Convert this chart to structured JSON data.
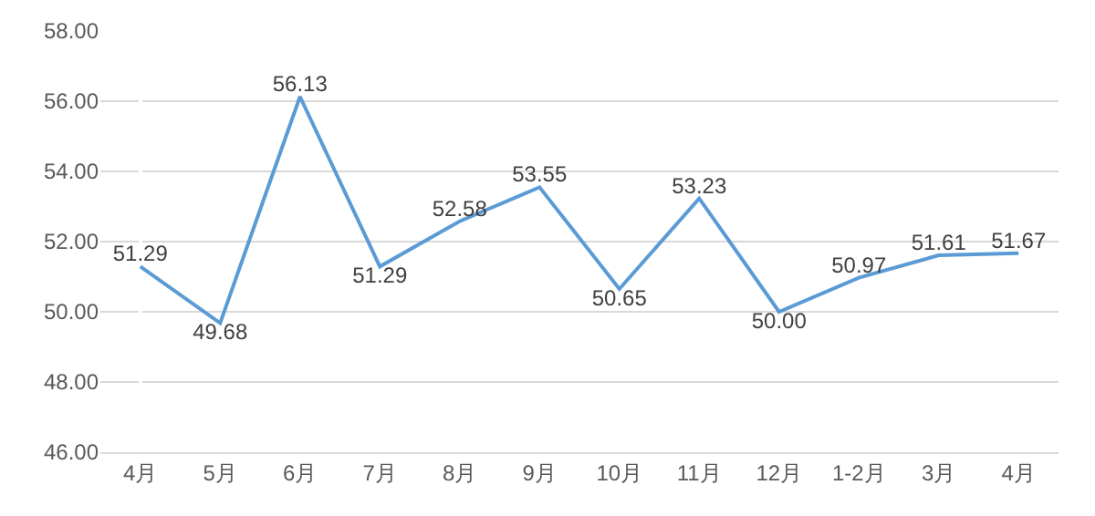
{
  "chart_data": {
    "type": "line",
    "categories": [
      "4月",
      "5月",
      "6月",
      "7月",
      "8月",
      "9月",
      "10月",
      "11月",
      "12月",
      "1-2月",
      "3月",
      "4月"
    ],
    "values": [
      51.29,
      49.68,
      56.13,
      51.29,
      52.58,
      53.55,
      50.65,
      53.23,
      50.0,
      50.97,
      51.61,
      51.67
    ],
    "value_labels": [
      "51.29",
      "49.68",
      "56.13",
      "51.29",
      "52.58",
      "53.55",
      "50.65",
      "53.23",
      "50.00",
      "50.97",
      "51.61",
      "51.67"
    ],
    "color": "#5b9bd5",
    "ylim": [
      46,
      58
    ],
    "yticks": [
      {
        "value": 46,
        "label": "46.00"
      },
      {
        "value": 48,
        "label": "48.00"
      },
      {
        "value": 50,
        "label": "50.00"
      },
      {
        "value": 52,
        "label": "52.00"
      },
      {
        "value": 54,
        "label": "54.00"
      },
      {
        "value": 56,
        "label": "56.00"
      },
      {
        "value": 58,
        "label": "58.00"
      }
    ],
    "grid": "y",
    "marker": "none",
    "line_style": "solid"
  }
}
